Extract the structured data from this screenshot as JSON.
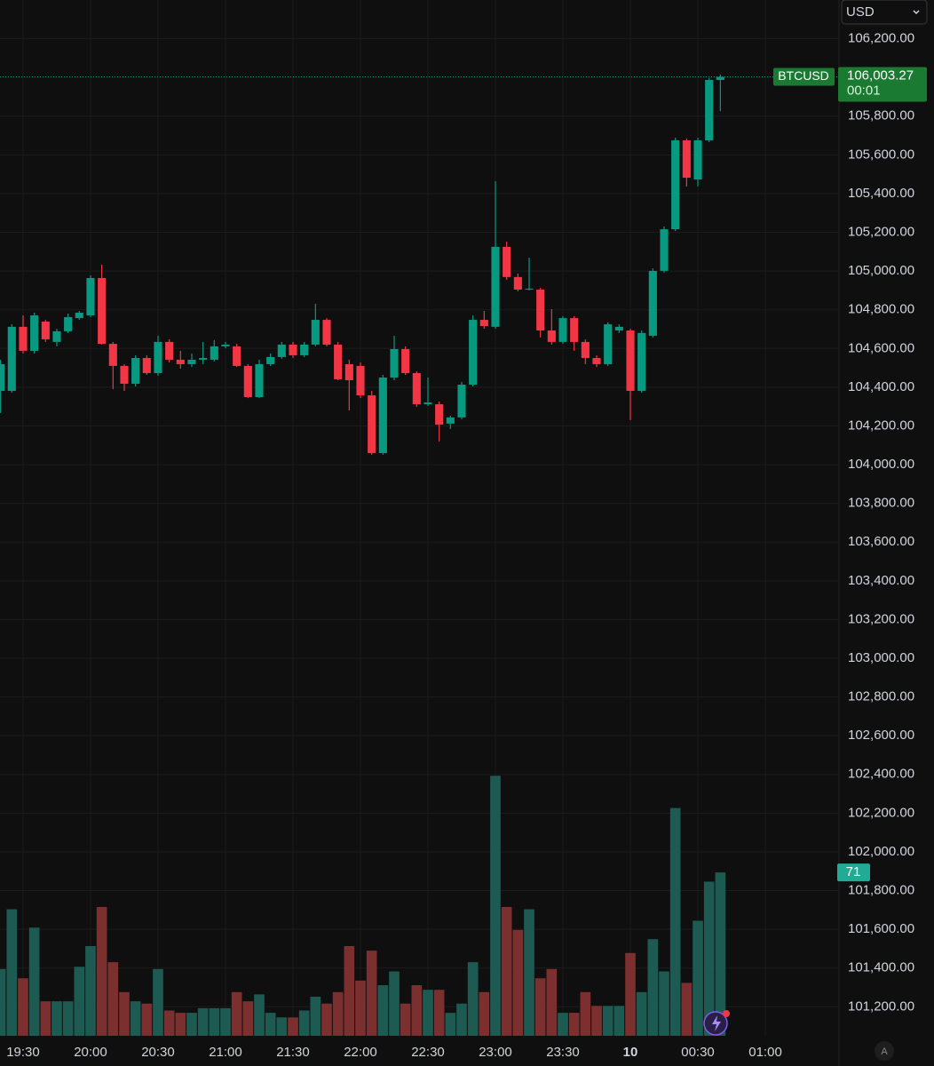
{
  "chart_data": {
    "type": "candlestick",
    "symbol": "BTCUSD",
    "currency": "USD",
    "countdown": "00:01",
    "last_value_label": "106,003.27",
    "auto_button": "A",
    "up_color": "#089981",
    "down_color": "#f23645",
    "volume_up_color": "#1d5b52",
    "volume_down_color": "#7b2f2f",
    "grid": true,
    "open": [
      104381,
      104381,
      104712,
      104588,
      104739,
      104634,
      104689,
      104757,
      104771,
      104964,
      104624,
      104510,
      104418,
      104551,
      104473,
      104634,
      104542,
      104519,
      104542,
      104542,
      104611,
      104611,
      104510,
      104349,
      104519,
      104556,
      104620,
      104565,
      104620,
      104748,
      104620,
      104519,
      104510,
      104358,
      104060,
      104450,
      104597,
      104473,
      104312,
      104312,
      104212,
      104244,
      104413,
      104748,
      104712,
      105125,
      104969,
      104904,
      104904,
      104693,
      104634,
      104757,
      104634,
      104551,
      104519,
      104693,
      104693,
      104381,
      104666,
      105001,
      105216,
      105675,
      105473,
      105675,
      105987
    ],
    "high": [
      104542,
      104725,
      104771,
      104785,
      104748,
      104702,
      104780,
      104794,
      104978,
      105033,
      104634,
      104519,
      104565,
      104565,
      104666,
      104647,
      104588,
      104574,
      104634,
      104643,
      104634,
      104624,
      104519,
      104542,
      104574,
      104634,
      104634,
      104634,
      104831,
      104757,
      104634,
      104542,
      104528,
      104381,
      104464,
      104666,
      104611,
      104482,
      104450,
      104326,
      104253,
      104427,
      104771,
      104794,
      105464,
      105152,
      104987,
      105069,
      104913,
      104803,
      104767,
      104767,
      104647,
      104565,
      104735,
      104725,
      104702,
      104693,
      105014,
      105230,
      105689,
      105684,
      105689,
      105996,
      106015
    ],
    "low": [
      104267,
      104372,
      104574,
      104574,
      104634,
      104611,
      104680,
      104748,
      104762,
      104620,
      104390,
      104381,
      104404,
      104464,
      104459,
      104528,
      104496,
      104505,
      104519,
      104533,
      104601,
      104505,
      104344,
      104344,
      104510,
      104546,
      104551,
      104556,
      104611,
      104611,
      104436,
      104280,
      104344,
      104051,
      104051,
      104436,
      104464,
      104299,
      104303,
      104120,
      104184,
      104234,
      104404,
      104702,
      104702,
      104955,
      104895,
      104900,
      104657,
      104620,
      104624,
      104588,
      104519,
      104505,
      104510,
      104680,
      104230,
      104372,
      104657,
      104992,
      105207,
      105437,
      105437,
      105666,
      105826
    ],
    "close": [
      104519,
      104712,
      104588,
      104771,
      104647,
      104689,
      104762,
      104785,
      104964,
      104624,
      104510,
      104418,
      104551,
      104473,
      104634,
      104542,
      104519,
      104542,
      104551,
      104611,
      104620,
      104510,
      104349,
      104519,
      104556,
      104620,
      104565,
      104620,
      104748,
      104620,
      104441,
      104436,
      104358,
      104060,
      104450,
      104597,
      104473,
      104312,
      104321,
      104207,
      104244,
      104413,
      104748,
      104716,
      105125,
      104969,
      104904,
      104909,
      104693,
      104634,
      104757,
      104634,
      104551,
      104519,
      104725,
      104712,
      104381,
      104680,
      105001,
      105216,
      105675,
      105482,
      105675,
      105987,
      106003.27
    ],
    "volume": [
      29,
      55,
      25,
      47,
      15,
      15,
      15,
      30,
      39,
      56,
      32,
      19,
      15,
      14,
      29,
      11,
      10,
      10,
      12,
      12,
      12,
      19,
      15,
      18,
      10,
      8,
      8,
      11,
      17,
      14,
      19,
      39,
      24,
      37,
      22,
      28,
      14,
      22,
      20,
      20,
      10,
      14,
      32,
      19,
      113,
      56,
      46,
      55,
      25,
      29,
      10,
      10,
      19,
      13,
      13,
      13,
      36,
      19,
      42,
      28,
      99,
      23,
      50,
      67,
      71
    ],
    "xlim": [
      -0.05,
      74.55
    ],
    "xticks": [
      {
        "value": 2,
        "label": "19:30"
      },
      {
        "value": 8,
        "label": "20:00"
      },
      {
        "value": 14,
        "label": "20:30"
      },
      {
        "value": 20,
        "label": "21:00"
      },
      {
        "value": 26,
        "label": "21:30"
      },
      {
        "value": 32,
        "label": "22:00"
      },
      {
        "value": 38,
        "label": "22:30"
      },
      {
        "value": 44,
        "label": "23:00"
      },
      {
        "value": 50,
        "label": "23:30"
      },
      {
        "value": 56,
        "label": "10"
      },
      {
        "value": 62,
        "label": "00:30"
      },
      {
        "value": 68,
        "label": "01:00"
      }
    ],
    "ylim": [
      101050,
      106400
    ],
    "yticks": [
      {
        "value": 106200,
        "label": "106,200.00"
      },
      {
        "value": 106000,
        "label": "106,000.00"
      },
      {
        "value": 105800,
        "label": "105,800.00"
      },
      {
        "value": 105600,
        "label": "105,600.00"
      },
      {
        "value": 105400,
        "label": "105,400.00"
      },
      {
        "value": 105200,
        "label": "105,200.00"
      },
      {
        "value": 105000,
        "label": "105,000.00"
      },
      {
        "value": 104800,
        "label": "104,800.00"
      },
      {
        "value": 104600,
        "label": "104,600.00"
      },
      {
        "value": 104400,
        "label": "104,400.00"
      },
      {
        "value": 104200,
        "label": "104,200.00"
      },
      {
        "value": 104000,
        "label": "104,000.00"
      },
      {
        "value": 103800,
        "label": "103,800.00"
      },
      {
        "value": 103600,
        "label": "103,600.00"
      },
      {
        "value": 103400,
        "label": "103,400.00"
      },
      {
        "value": 103200,
        "label": "103,200.00"
      },
      {
        "value": 103000,
        "label": "103,000.00"
      },
      {
        "value": 102800,
        "label": "102,800.00"
      },
      {
        "value": 102600,
        "label": "102,600.00"
      },
      {
        "value": 102400,
        "label": "102,400.00"
      },
      {
        "value": 102200,
        "label": "102,200.00"
      },
      {
        "value": 102000,
        "label": "102,000.00"
      },
      {
        "value": 101800,
        "label": "101,800.00"
      },
      {
        "value": 101600,
        "label": "101,600.00"
      },
      {
        "value": 101400,
        "label": "101,400.00"
      },
      {
        "value": 101200,
        "label": "101,200.00"
      }
    ],
    "y2lim": [
      0,
      200
    ]
  }
}
